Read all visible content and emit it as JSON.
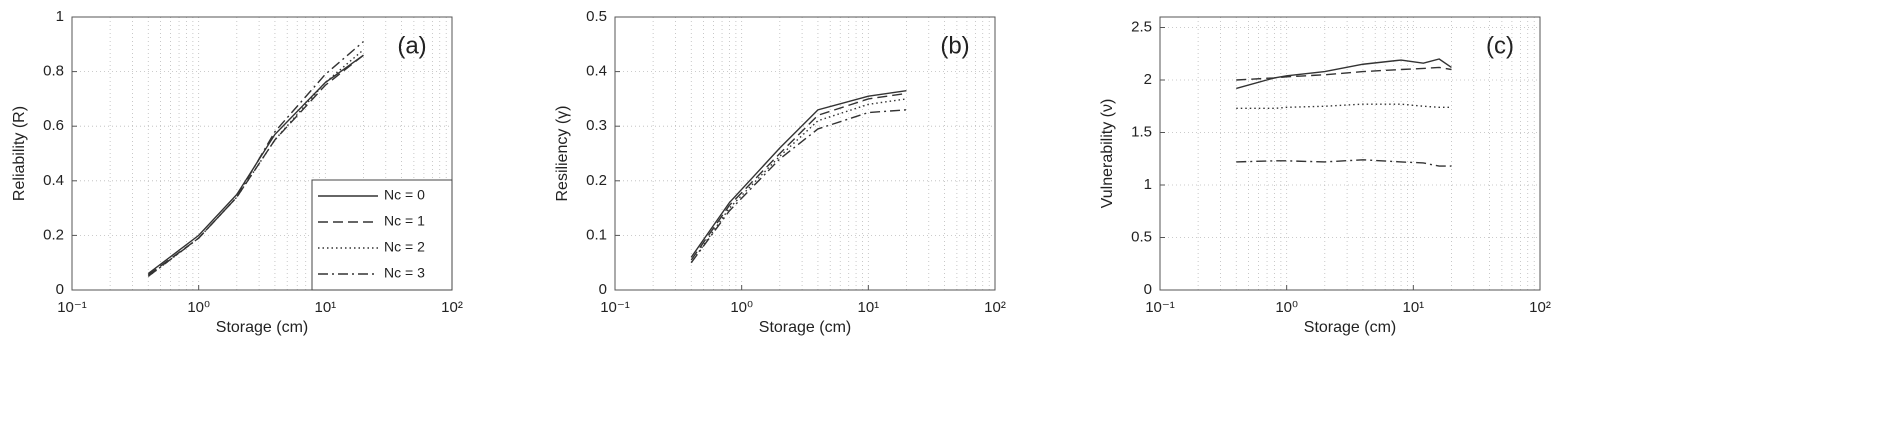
{
  "chart_data": [
    {
      "type": "line",
      "annotation": "(a)",
      "x_label": "Storage (cm)",
      "y_label": "Reliability (R)",
      "xscale": "log",
      "xlim": [
        0.1,
        100
      ],
      "xticks": [
        {
          "value": 0.1,
          "label": "10⁻¹"
        },
        {
          "value": 1,
          "label": "10⁰"
        },
        {
          "value": 10,
          "label": "10¹"
        },
        {
          "value": 100,
          "label": "10²"
        }
      ],
      "ylim": [
        0,
        1
      ],
      "yticks": [
        0,
        0.2,
        0.4,
        0.6,
        0.8,
        1
      ],
      "grid": true,
      "legend": "lower right",
      "x": [
        0.4,
        1,
        2,
        4,
        10,
        20
      ],
      "series": [
        {
          "name": "Nc = 0",
          "color": "#333333",
          "line_style": "solid",
          "values": [
            0.06,
            0.2,
            0.35,
            0.57,
            0.76,
            0.86
          ]
        },
        {
          "name": "Nc = 1",
          "color": "#333333",
          "line_style": "dashed",
          "values": [
            0.055,
            0.19,
            0.34,
            0.55,
            0.75,
            0.86
          ]
        },
        {
          "name": "Nc = 2",
          "color": "#333333",
          "line_style": "dotted",
          "values": [
            0.05,
            0.19,
            0.34,
            0.55,
            0.76,
            0.88
          ]
        },
        {
          "name": "Nc = 3",
          "color": "#333333",
          "line_style": "dashdot",
          "values": [
            0.05,
            0.19,
            0.34,
            0.58,
            0.79,
            0.91
          ]
        }
      ]
    },
    {
      "type": "line",
      "annotation": "(b)",
      "x_label": "Storage (cm)",
      "y_label": "Resiliency (γ)",
      "xscale": "log",
      "xlim": [
        0.1,
        100
      ],
      "xticks": [
        {
          "value": 0.1,
          "label": "10⁻¹"
        },
        {
          "value": 1,
          "label": "10⁰"
        },
        {
          "value": 10,
          "label": "10¹"
        },
        {
          "value": 100,
          "label": "10²"
        }
      ],
      "ylim": [
        0,
        0.5
      ],
      "yticks": [
        0,
        0.1,
        0.2,
        0.3,
        0.4,
        0.5
      ],
      "grid": true,
      "x": [
        0.4,
        0.8,
        2,
        4,
        10,
        20
      ],
      "series": [
        {
          "color": "#333333",
          "line_style": "solid",
          "values": [
            0.06,
            0.16,
            0.26,
            0.33,
            0.355,
            0.365
          ]
        },
        {
          "color": "#333333",
          "line_style": "dashed",
          "values": [
            0.055,
            0.155,
            0.25,
            0.32,
            0.35,
            0.36
          ]
        },
        {
          "color": "#333333",
          "line_style": "dotted",
          "values": [
            0.05,
            0.15,
            0.245,
            0.31,
            0.34,
            0.35
          ]
        },
        {
          "color": "#333333",
          "line_style": "dashdot",
          "values": [
            0.05,
            0.145,
            0.24,
            0.295,
            0.325,
            0.33
          ]
        }
      ]
    },
    {
      "type": "line",
      "annotation": "(c)",
      "x_label": "Storage (cm)",
      "y_label": "Vulnerability (ν)",
      "xscale": "log",
      "xlim": [
        0.1,
        100
      ],
      "xticks": [
        {
          "value": 0.1,
          "label": "10⁻¹"
        },
        {
          "value": 1,
          "label": "10⁰"
        },
        {
          "value": 10,
          "label": "10¹"
        },
        {
          "value": 100,
          "label": "10²"
        }
      ],
      "ylim": [
        0,
        2.6
      ],
      "yticks": [
        0,
        0.5,
        1,
        1.5,
        2,
        2.5
      ],
      "grid": true,
      "x": [
        0.4,
        0.8,
        1,
        2,
        4,
        8,
        12,
        16,
        20
      ],
      "series": [
        {
          "color": "#333333",
          "line_style": "solid",
          "values": [
            1.92,
            2.02,
            2.04,
            2.08,
            2.15,
            2.19,
            2.16,
            2.2,
            2.12
          ]
        },
        {
          "color": "#333333",
          "line_style": "dashed",
          "values": [
            2.0,
            2.02,
            2.03,
            2.05,
            2.08,
            2.1,
            2.11,
            2.12,
            2.1
          ]
        },
        {
          "color": "#333333",
          "line_style": "dotted",
          "values": [
            1.73,
            1.73,
            1.74,
            1.75,
            1.77,
            1.77,
            1.75,
            1.74,
            1.74
          ]
        },
        {
          "color": "#333333",
          "line_style": "dashdot",
          "values": [
            1.22,
            1.23,
            1.23,
            1.22,
            1.24,
            1.22,
            1.21,
            1.18,
            1.18
          ]
        }
      ]
    }
  ]
}
